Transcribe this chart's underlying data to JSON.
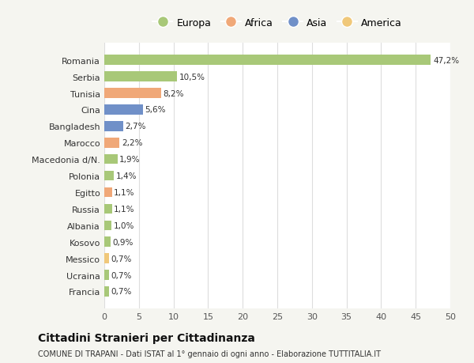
{
  "categories": [
    "Francia",
    "Ucraina",
    "Messico",
    "Kosovo",
    "Albania",
    "Russia",
    "Egitto",
    "Polonia",
    "Macedonia d/N.",
    "Marocco",
    "Bangladesh",
    "Cina",
    "Tunisia",
    "Serbia",
    "Romania"
  ],
  "values": [
    0.7,
    0.7,
    0.7,
    0.9,
    1.0,
    1.1,
    1.1,
    1.4,
    1.9,
    2.2,
    2.7,
    5.6,
    8.2,
    10.5,
    47.2
  ],
  "labels": [
    "0,7%",
    "0,7%",
    "0,7%",
    "0,9%",
    "1,0%",
    "1,1%",
    "1,1%",
    "1,4%",
    "1,9%",
    "2,2%",
    "2,7%",
    "5,6%",
    "8,2%",
    "10,5%",
    "47,2%"
  ],
  "colors": [
    "#a8c878",
    "#a8c878",
    "#f0c87a",
    "#a8c878",
    "#a8c878",
    "#a8c878",
    "#f0a878",
    "#a8c878",
    "#a8c878",
    "#f0a878",
    "#7090c8",
    "#7090c8",
    "#f0a878",
    "#a8c878",
    "#a8c878"
  ],
  "legend": [
    {
      "label": "Europa",
      "color": "#a8c878"
    },
    {
      "label": "Africa",
      "color": "#f0a878"
    },
    {
      "label": "Asia",
      "color": "#7090c8"
    },
    {
      "label": "America",
      "color": "#f0c87a"
    }
  ],
  "title": "Cittadini Stranieri per Cittadinanza",
  "subtitle": "COMUNE DI TRAPANI - Dati ISTAT al 1° gennaio di ogni anno - Elaborazione TUTTITALIA.IT",
  "xlim": [
    0,
    50
  ],
  "xticks": [
    0,
    5,
    10,
    15,
    20,
    25,
    30,
    35,
    40,
    45,
    50
  ],
  "background_color": "#f5f5f0",
  "bar_background": "#ffffff",
  "grid_color": "#dddddd"
}
